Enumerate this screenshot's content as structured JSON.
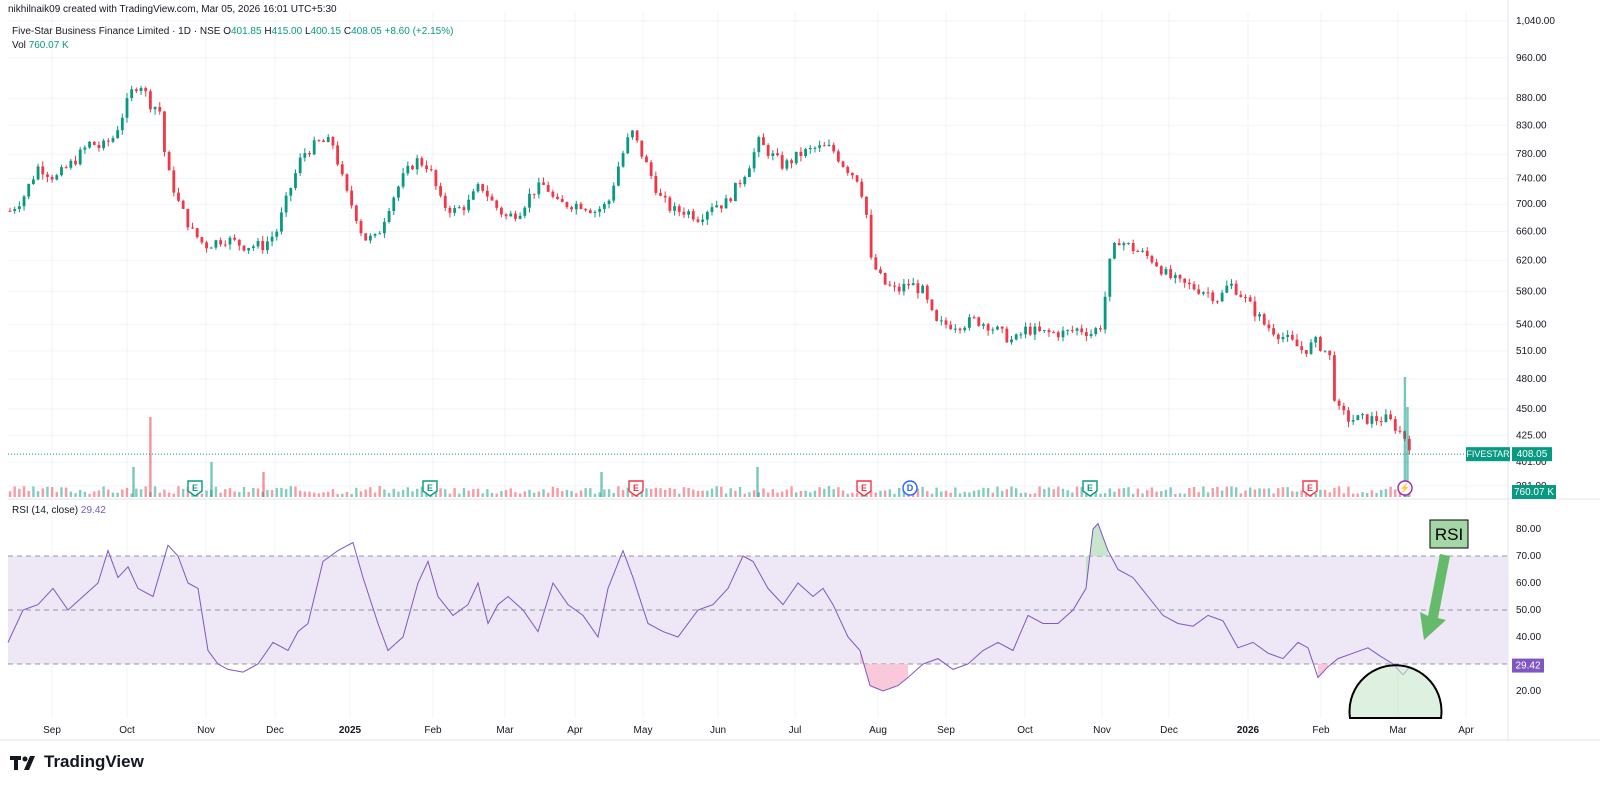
{
  "attribution": "nikhilnaik09 created with TradingView.com, Mar 05, 2026 16:01 UTC+5:30",
  "legend": {
    "symbol": "Five-Star Business Finance Limited · 1D · NSE",
    "open": "401.85",
    "high": "415.00",
    "low": "400.15",
    "close": "408.05",
    "change": "+8.60 (+2.15%)"
  },
  "volume_legend": {
    "label": "Vol",
    "value": "760.07 K"
  },
  "rsi_legend": {
    "label": "RSI (14, close)",
    "value": "29.42"
  },
  "logo_text": "TradingView",
  "colors": {
    "up": "#089981",
    "down": "#f23645",
    "rsi": "#7e57c2",
    "band": "#ede7f6",
    "annotation": "#66bb6a"
  },
  "chart_data": [
    {
      "type": "candlestick",
      "symbol_tag": "FIVESTAR",
      "last_price": "408.05",
      "volume_tag": "760.07 K",
      "y_ticks": [
        "1,040.00",
        "960.00",
        "880.00",
        "830.00",
        "780.00",
        "740.00",
        "700.00",
        "660.00",
        "620.00",
        "580.00",
        "540.00",
        "510.00",
        "480.00",
        "450.00",
        "425.00",
        "401.00",
        "381.00"
      ],
      "x_ticks": [
        "Sep",
        "Oct",
        "Nov",
        "Dec",
        "2025",
        "Feb",
        "Mar",
        "Apr",
        "May",
        "Jun",
        "Jul",
        "Aug",
        "Sep",
        "Oct",
        "Nov",
        "Dec",
        "2026",
        "Feb",
        "Mar",
        "Apr"
      ],
      "price_path": [
        [
          0,
          690
        ],
        [
          10,
          710
        ],
        [
          22,
          760
        ],
        [
          35,
          740
        ],
        [
          50,
          770
        ],
        [
          62,
          800
        ],
        [
          70,
          790
        ],
        [
          80,
          810
        ],
        [
          95,
          900
        ],
        [
          100,
          910
        ],
        [
          108,
          870
        ],
        [
          115,
          860
        ],
        [
          120,
          760
        ],
        [
          130,
          700
        ],
        [
          140,
          660
        ],
        [
          150,
          640
        ],
        [
          165,
          650
        ],
        [
          180,
          640
        ],
        [
          195,
          640
        ],
        [
          205,
          660
        ],
        [
          215,
          720
        ],
        [
          225,
          780
        ],
        [
          238,
          800
        ],
        [
          248,
          800
        ],
        [
          258,
          720
        ],
        [
          265,
          690
        ],
        [
          272,
          650
        ],
        [
          282,
          650
        ],
        [
          292,
          700
        ],
        [
          302,
          740
        ],
        [
          312,
          770
        ],
        [
          322,
          760
        ],
        [
          332,
          700
        ],
        [
          342,
          690
        ],
        [
          352,
          700
        ],
        [
          362,
          730
        ],
        [
          372,
          700
        ],
        [
          382,
          680
        ],
        [
          392,
          690
        ],
        [
          402,
          720
        ],
        [
          412,
          730
        ],
        [
          420,
          700
        ],
        [
          430,
          700
        ],
        [
          440,
          700
        ],
        [
          450,
          690
        ],
        [
          460,
          700
        ],
        [
          468,
          760
        ],
        [
          478,
          820
        ],
        [
          482,
          800
        ],
        [
          490,
          760
        ],
        [
          500,
          710
        ],
        [
          510,
          690
        ],
        [
          520,
          690
        ],
        [
          530,
          680
        ],
        [
          540,
          700
        ],
        [
          550,
          700
        ],
        [
          560,
          730
        ],
        [
          568,
          760
        ],
        [
          576,
          800
        ],
        [
          585,
          780
        ],
        [
          595,
          760
        ],
        [
          608,
          780
        ],
        [
          620,
          790
        ],
        [
          632,
          790
        ],
        [
          642,
          760
        ],
        [
          652,
          740
        ],
        [
          658,
          700
        ],
        [
          662,
          620
        ],
        [
          672,
          590
        ],
        [
          682,
          580
        ],
        [
          692,
          590
        ],
        [
          702,
          580
        ],
        [
          712,
          540
        ],
        [
          722,
          540
        ],
        [
          732,
          540
        ],
        [
          742,
          545
        ],
        [
          752,
          540
        ],
        [
          762,
          530
        ],
        [
          772,
          520
        ],
        [
          782,
          535
        ],
        [
          792,
          530
        ],
        [
          802,
          530
        ],
        [
          812,
          530
        ],
        [
          822,
          535
        ],
        [
          832,
          530
        ],
        [
          840,
          540
        ],
        [
          845,
          610
        ],
        [
          852,
          650
        ],
        [
          860,
          640
        ],
        [
          870,
          630
        ],
        [
          880,
          620
        ],
        [
          890,
          600
        ],
        [
          900,
          590
        ],
        [
          910,
          585
        ],
        [
          920,
          580
        ],
        [
          930,
          570
        ],
        [
          938,
          590
        ],
        [
          945,
          580
        ],
        [
          955,
          560
        ],
        [
          965,
          540
        ],
        [
          975,
          530
        ],
        [
          985,
          520
        ],
        [
          995,
          510
        ],
        [
          1005,
          520
        ],
        [
          1015,
          505
        ],
        [
          1020,
          450
        ],
        [
          1030,
          440
        ],
        [
          1040,
          440
        ],
        [
          1050,
          440
        ],
        [
          1060,
          440
        ],
        [
          1068,
          430
        ],
        [
          1075,
          420
        ],
        [
          1080,
          408
        ]
      ],
      "volume_spikes": [
        [
          108,
          "down",
          80
        ],
        [
          95,
          "up",
          30
        ],
        [
          155,
          "up",
          35
        ],
        [
          195,
          "down",
          25
        ],
        [
          455,
          "up",
          25
        ],
        [
          575,
          "up",
          30
        ],
        [
          1073,
          "up",
          120
        ],
        [
          1075,
          "up",
          90
        ],
        [
          1300,
          "down",
          40
        ]
      ],
      "events": [
        {
          "x": 195,
          "label": "E",
          "color": "#089981"
        },
        {
          "x": 430,
          "label": "E",
          "color": "#089981"
        },
        {
          "x": 636,
          "label": "E",
          "color": "#f23645"
        },
        {
          "x": 864,
          "label": "E",
          "color": "#f23645"
        },
        {
          "x": 910,
          "label": "D",
          "color": "#2962ff"
        },
        {
          "x": 1090,
          "label": "E",
          "color": "#089981"
        },
        {
          "x": 1310,
          "label": "E",
          "color": "#f23645"
        },
        {
          "x": 1405,
          "label": "⚡",
          "color": "#9c27b0"
        }
      ]
    },
    {
      "type": "line",
      "name": "RSI (14, close)",
      "ylim": [
        10,
        90
      ],
      "y_ticks": [
        "80.00",
        "70.00",
        "60.00",
        "50.00",
        "40.00",
        "20.00"
      ],
      "levels": {
        "upper": 70,
        "middle": 50,
        "lower": 30
      },
      "last_value": "29.42",
      "annotation_label": "RSI",
      "values": [
        [
          0,
          38
        ],
        [
          15,
          50
        ],
        [
          30,
          52
        ],
        [
          45,
          58
        ],
        [
          60,
          50
        ],
        [
          75,
          55
        ],
        [
          90,
          60
        ],
        [
          100,
          72
        ],
        [
          110,
          62
        ],
        [
          120,
          66
        ],
        [
          130,
          58
        ],
        [
          145,
          55
        ],
        [
          160,
          74
        ],
        [
          170,
          70
        ],
        [
          180,
          60
        ],
        [
          190,
          58
        ],
        [
          200,
          35
        ],
        [
          210,
          30
        ],
        [
          220,
          28
        ],
        [
          235,
          27
        ],
        [
          250,
          30
        ],
        [
          265,
          38
        ],
        [
          280,
          35
        ],
        [
          290,
          42
        ],
        [
          300,
          45
        ],
        [
          315,
          68
        ],
        [
          330,
          72
        ],
        [
          345,
          75
        ],
        [
          355,
          62
        ],
        [
          370,
          45
        ],
        [
          380,
          35
        ],
        [
          395,
          40
        ],
        [
          410,
          60
        ],
        [
          420,
          68
        ],
        [
          430,
          55
        ],
        [
          445,
          48
        ],
        [
          460,
          52
        ],
        [
          470,
          60
        ],
        [
          480,
          45
        ],
        [
          490,
          52
        ],
        [
          500,
          55
        ],
        [
          515,
          50
        ],
        [
          530,
          42
        ],
        [
          545,
          60
        ],
        [
          560,
          52
        ],
        [
          575,
          48
        ],
        [
          590,
          40
        ],
        [
          600,
          58
        ],
        [
          615,
          72
        ],
        [
          625,
          62
        ],
        [
          640,
          45
        ],
        [
          655,
          42
        ],
        [
          670,
          40
        ],
        [
          690,
          50
        ],
        [
          705,
          52
        ],
        [
          720,
          58
        ],
        [
          735,
          70
        ],
        [
          745,
          68
        ],
        [
          760,
          58
        ],
        [
          775,
          52
        ],
        [
          790,
          60
        ],
        [
          805,
          55
        ],
        [
          815,
          58
        ],
        [
          825,
          52
        ],
        [
          840,
          40
        ],
        [
          852,
          35
        ],
        [
          862,
          22
        ],
        [
          875,
          20
        ],
        [
          890,
          22
        ],
        [
          900,
          25
        ],
        [
          915,
          30
        ],
        [
          930,
          32
        ],
        [
          945,
          28
        ],
        [
          960,
          30
        ],
        [
          975,
          35
        ],
        [
          990,
          38
        ],
        [
          1005,
          35
        ],
        [
          1020,
          48
        ],
        [
          1035,
          45
        ],
        [
          1050,
          45
        ],
        [
          1065,
          50
        ],
        [
          1078,
          58
        ],
        [
          1085,
          80
        ],
        [
          1090,
          82
        ],
        [
          1100,
          72
        ],
        [
          1110,
          65
        ],
        [
          1125,
          62
        ],
        [
          1140,
          55
        ],
        [
          1155,
          48
        ],
        [
          1170,
          45
        ],
        [
          1185,
          44
        ],
        [
          1200,
          48
        ],
        [
          1215,
          46
        ],
        [
          1230,
          36
        ],
        [
          1245,
          38
        ],
        [
          1260,
          34
        ],
        [
          1275,
          32
        ],
        [
          1290,
          38
        ],
        [
          1300,
          36
        ],
        [
          1310,
          25
        ],
        [
          1320,
          29
        ],
        [
          1330,
          32
        ],
        [
          1345,
          34
        ],
        [
          1360,
          36
        ],
        [
          1372,
          33
        ],
        [
          1385,
          30
        ],
        [
          1395,
          26
        ],
        [
          1402,
          29
        ]
      ]
    }
  ]
}
